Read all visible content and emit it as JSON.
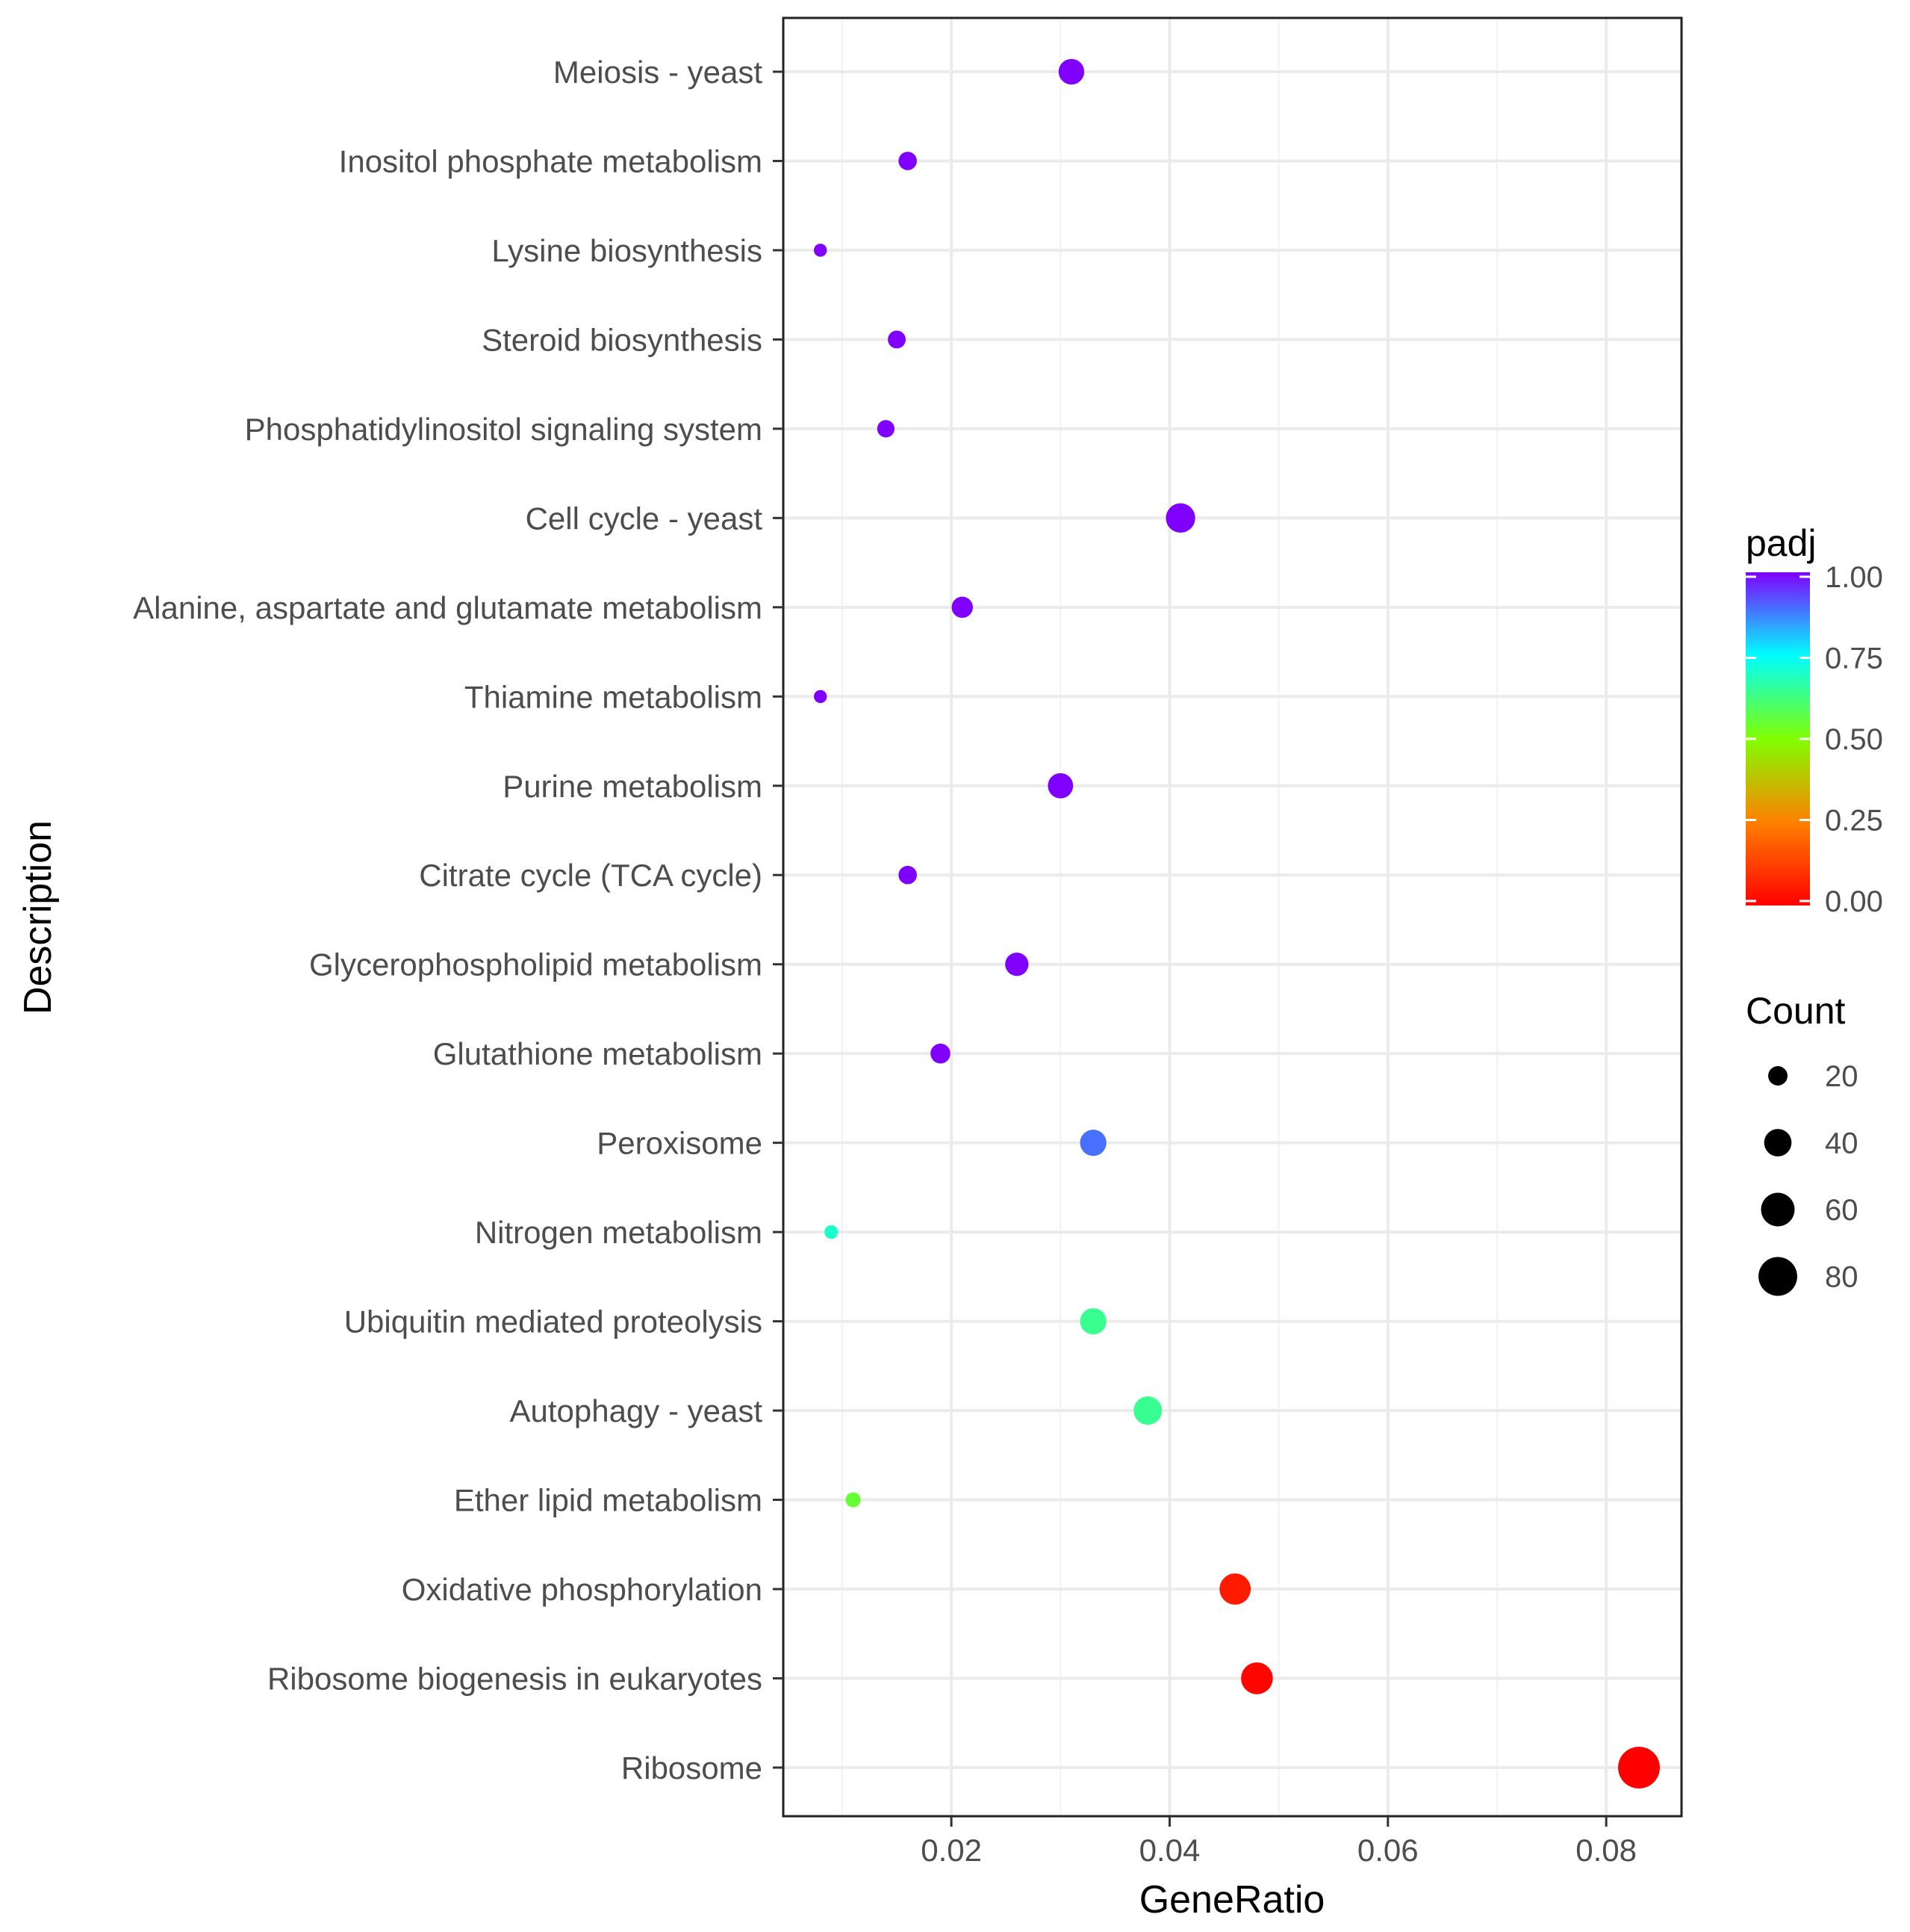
{
  "chart_data": {
    "type": "scatter",
    "xlabel": "GeneRatio",
    "ylabel": "Description",
    "xlim": [
      0.0046,
      0.0869
    ],
    "xticks": [
      "0.02",
      "0.04",
      "0.06",
      "0.08"
    ],
    "xtick_values": [
      0.02,
      0.04,
      0.06,
      0.08
    ],
    "grid": true,
    "categories": [
      "Meiosis - yeast",
      "Inositol phosphate metabolism",
      "Lysine biosynthesis",
      "Steroid biosynthesis",
      "Phosphatidylinositol signaling system",
      "Cell cycle - yeast",
      "Alanine, aspartate and glutamate metabolism",
      "Thiamine metabolism",
      "Purine metabolism",
      "Citrate cycle (TCA cycle)",
      "Glycerophospholipid metabolism",
      "Glutathione metabolism",
      "Peroxisome",
      "Nitrogen metabolism",
      "Ubiquitin mediated proteolysis",
      "Autophagy - yeast",
      "Ether lipid metabolism",
      "Oxidative phosphorylation",
      "Ribosome biogenesis in eukaryotes",
      "Ribosome"
    ],
    "points": [
      {
        "term": "Meiosis - yeast",
        "gene_ratio": 0.031,
        "count": 35,
        "padj": 1.0
      },
      {
        "term": "Inositol phosphate metabolism",
        "gene_ratio": 0.016,
        "count": 18,
        "padj": 1.0
      },
      {
        "term": "Lysine biosynthesis",
        "gene_ratio": 0.008,
        "count": 9,
        "padj": 1.0
      },
      {
        "term": "Steroid biosynthesis",
        "gene_ratio": 0.015,
        "count": 17,
        "padj": 1.0
      },
      {
        "term": "Phosphatidylinositol signaling system",
        "gene_ratio": 0.014,
        "count": 16,
        "padj": 1.0
      },
      {
        "term": "Cell cycle - yeast",
        "gene_ratio": 0.041,
        "count": 46,
        "padj": 1.0
      },
      {
        "term": "Alanine, aspartate and glutamate metabolism",
        "gene_ratio": 0.021,
        "count": 24,
        "padj": 1.0
      },
      {
        "term": "Thiamine metabolism",
        "gene_ratio": 0.008,
        "count": 9,
        "padj": 1.0
      },
      {
        "term": "Purine metabolism",
        "gene_ratio": 0.03,
        "count": 34,
        "padj": 1.0
      },
      {
        "term": "Citrate cycle (TCA cycle)",
        "gene_ratio": 0.016,
        "count": 18,
        "padj": 1.0
      },
      {
        "term": "Glycerophospholipid metabolism",
        "gene_ratio": 0.026,
        "count": 29,
        "padj": 1.0
      },
      {
        "term": "Glutathione metabolism",
        "gene_ratio": 0.019,
        "count": 21,
        "padj": 1.0
      },
      {
        "term": "Peroxisome",
        "gene_ratio": 0.033,
        "count": 37,
        "padj": 0.89
      },
      {
        "term": "Nitrogen metabolism",
        "gene_ratio": 0.009,
        "count": 10,
        "padj": 0.7
      },
      {
        "term": "Ubiquitin mediated proteolysis",
        "gene_ratio": 0.033,
        "count": 37,
        "padj": 0.64
      },
      {
        "term": "Autophagy - yeast",
        "gene_ratio": 0.038,
        "count": 43,
        "padj": 0.64
      },
      {
        "term": "Ether lipid metabolism",
        "gene_ratio": 0.011,
        "count": 12,
        "padj": 0.55
      },
      {
        "term": "Oxidative phosphorylation",
        "gene_ratio": 0.046,
        "count": 52,
        "padj": 0.05
      },
      {
        "term": "Ribosome biogenesis in eukaryotes",
        "gene_ratio": 0.048,
        "count": 54,
        "padj": 0.01
      },
      {
        "term": "Ribosome",
        "gene_ratio": 0.083,
        "count": 93,
        "padj": 0.0
      }
    ],
    "color_legend": {
      "title": "padj",
      "range": [
        0.0,
        1.0
      ],
      "ticks": [
        "0.00",
        "0.25",
        "0.50",
        "0.75",
        "1.00"
      ],
      "tick_values": [
        0.0,
        0.25,
        0.5,
        0.75,
        1.0
      ],
      "colors": [
        "#ff0000",
        "#ff8000",
        "#80ff00",
        "#00ffff",
        "#8000ff"
      ]
    },
    "size_legend": {
      "title": "Count",
      "ticks": [
        "20",
        "40",
        "60",
        "80"
      ],
      "tick_values": [
        20,
        40,
        60,
        80
      ]
    },
    "legend_position": "right"
  }
}
